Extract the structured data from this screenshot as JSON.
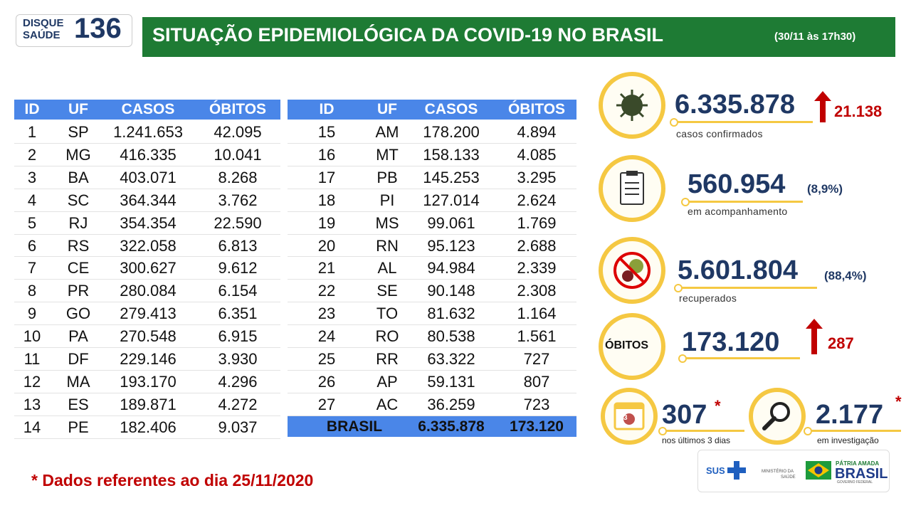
{
  "header": {
    "logo_top": "DISQUE",
    "logo_bottom": "SAÚDE",
    "logo_number": "136",
    "title": "SITUAÇÃO EPIDEMIOLÓGICA DA COVID-19 NO BRASIL",
    "date": "(30/11 às 17h30)"
  },
  "table_left": {
    "headers": [
      "ID",
      "UF",
      "CASOS",
      "ÓBITOS"
    ],
    "rows": [
      [
        "1",
        "SP",
        "1.241.653",
        "42.095"
      ],
      [
        "2",
        "MG",
        "416.335",
        "10.041"
      ],
      [
        "3",
        "BA",
        "403.071",
        "8.268"
      ],
      [
        "4",
        "SC",
        "364.344",
        "3.762"
      ],
      [
        "5",
        "RJ",
        "354.354",
        "22.590"
      ],
      [
        "6",
        "RS",
        "322.058",
        "6.813"
      ],
      [
        "7",
        "CE",
        "300.627",
        "9.612"
      ],
      [
        "8",
        "PR",
        "280.084",
        "6.154"
      ],
      [
        "9",
        "GO",
        "279.413",
        "6.351"
      ],
      [
        "10",
        "PA",
        "270.548",
        "6.915"
      ],
      [
        "11",
        "DF",
        "229.146",
        "3.930"
      ],
      [
        "12",
        "MA",
        "193.170",
        "4.296"
      ],
      [
        "13",
        "ES",
        "189.871",
        "4.272"
      ],
      [
        "14",
        "PE",
        "182.406",
        "9.037"
      ]
    ]
  },
  "table_right": {
    "headers": [
      "ID",
      "UF",
      "CASOS",
      "ÓBITOS"
    ],
    "rows": [
      [
        "15",
        "AM",
        "178.200",
        "4.894"
      ],
      [
        "16",
        "MT",
        "158.133",
        "4.085"
      ],
      [
        "17",
        "PB",
        "145.253",
        "3.295"
      ],
      [
        "18",
        "PI",
        "127.014",
        "2.624"
      ],
      [
        "19",
        "MS",
        "99.061",
        "1.769"
      ],
      [
        "20",
        "RN",
        "95.123",
        "2.688"
      ],
      [
        "21",
        "AL",
        "94.984",
        "2.339"
      ],
      [
        "22",
        "SE",
        "90.148",
        "2.308"
      ],
      [
        "23",
        "TO",
        "81.632",
        "1.164"
      ],
      [
        "24",
        "RO",
        "80.538",
        "1.561"
      ],
      [
        "25",
        "RR",
        "63.322",
        "727"
      ],
      [
        "26",
        "AP",
        "59.131",
        "807"
      ],
      [
        "27",
        "AC",
        "36.259",
        "723"
      ]
    ],
    "total": [
      "BRASIL",
      "6.335.878",
      "173.120"
    ]
  },
  "stats": {
    "confirmed": {
      "value": "6.335.878",
      "increase": "21.138",
      "label": "casos confirmados"
    },
    "follow_up": {
      "value": "560.954",
      "percent": "(8,9%)",
      "label": "em acompanhamento"
    },
    "recovered": {
      "value": "5.601.804",
      "percent": "(88,4%)",
      "label": "recuperados"
    },
    "deaths": {
      "badge": "ÓBITOS",
      "value": "173.120",
      "increase": "287"
    },
    "last_days": {
      "icon_number": "3",
      "value": "307",
      "star": "*",
      "label": "nos últimos 3 dias"
    },
    "investigation": {
      "value": "2.177",
      "star": "*",
      "label": "em investigação"
    }
  },
  "footnote": "* Dados referentes ao dia 25/11/2020",
  "footer": {
    "sus": "SUS",
    "ministry_top": "MINISTÉRIO DA",
    "ministry_bottom": "SAÚDE",
    "patria": "PÁTRIA AMADA",
    "brasil": "BRASIL",
    "government": "GOVERNO FEDERAL"
  }
}
